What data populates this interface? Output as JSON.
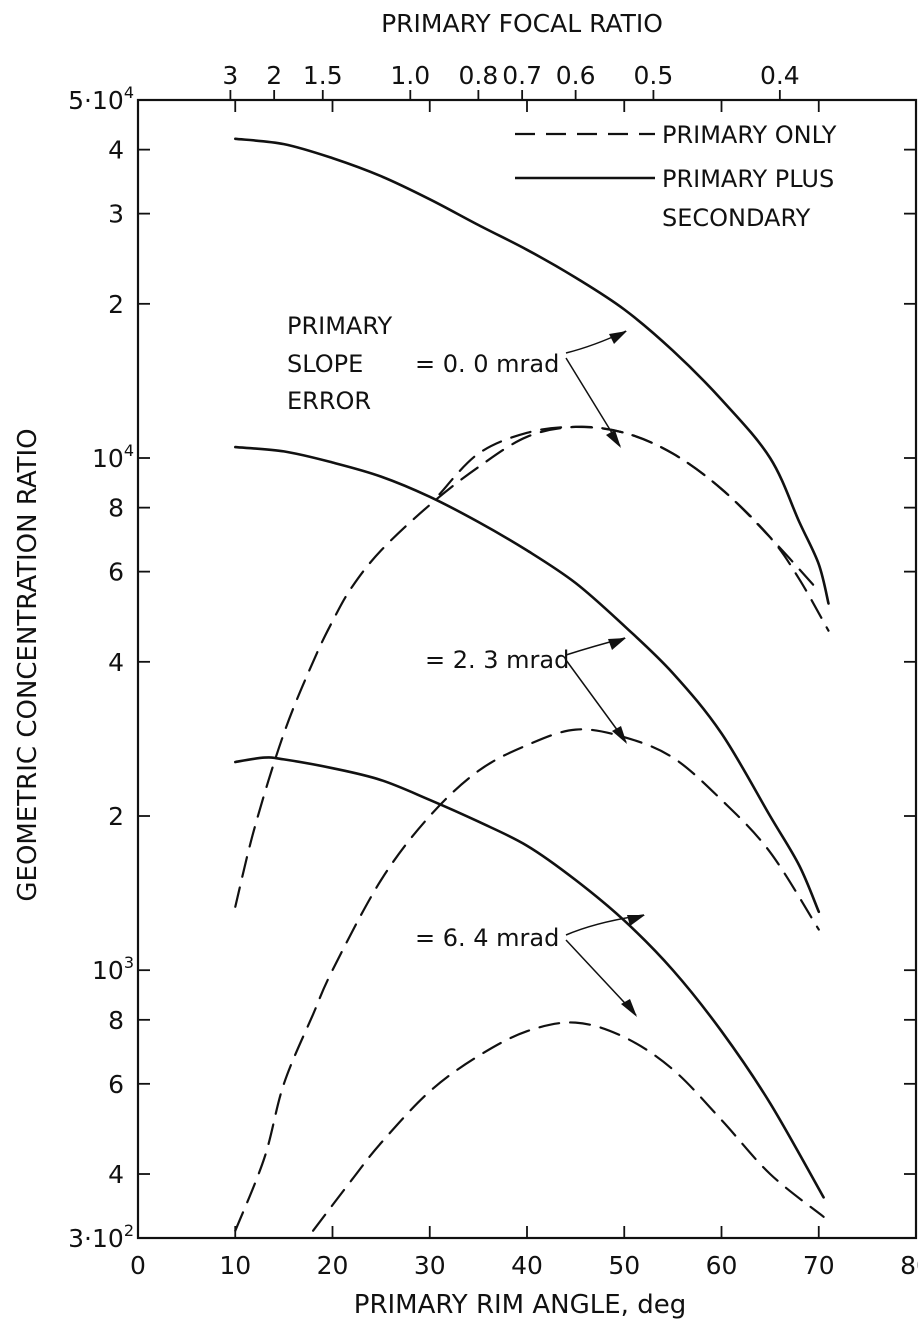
{
  "chart_data": {
    "type": "line",
    "title": "",
    "xlabel": "PRIMARY RIM ANGLE, deg",
    "ylabel": "GEOMETRIC CONCENTRATION RATIO",
    "top_axis_label": "PRIMARY FOCAL RATIO",
    "xlim": [
      0,
      80
    ],
    "ylim": [
      300,
      50000
    ],
    "y_scale": "log",
    "grid": false,
    "x_ticks": [
      0,
      10,
      20,
      30,
      40,
      50,
      60,
      70,
      80
    ],
    "x_tick_labels": [
      "0",
      "10",
      "20",
      "30",
      "40",
      "50",
      "60",
      "70",
      "80"
    ],
    "y_ticks": [
      {
        "value": 50000,
        "label": "5·10",
        "sup": "4"
      },
      {
        "value": 40000,
        "label": "4",
        "sup": ""
      },
      {
        "value": 30000,
        "label": "3",
        "sup": ""
      },
      {
        "value": 20000,
        "label": "2",
        "sup": ""
      },
      {
        "value": 10000,
        "label": "10",
        "sup": "4"
      },
      {
        "value": 8000,
        "label": "8",
        "sup": ""
      },
      {
        "value": 6000,
        "label": "6",
        "sup": ""
      },
      {
        "value": 4000,
        "label": "4",
        "sup": ""
      },
      {
        "value": 2000,
        "label": "2",
        "sup": ""
      },
      {
        "value": 1000,
        "label": "10",
        "sup": "3"
      },
      {
        "value": 800,
        "label": "8",
        "sup": ""
      },
      {
        "value": 600,
        "label": "6",
        "sup": ""
      },
      {
        "value": 400,
        "label": "4",
        "sup": ""
      },
      {
        "value": 300,
        "label": "3·10",
        "sup": "2"
      }
    ],
    "top_ticks": [
      {
        "angle": 9.5,
        "label": "3"
      },
      {
        "angle": 14,
        "label": "2"
      },
      {
        "angle": 19,
        "label": "1.5"
      },
      {
        "angle": 28,
        "label": "1.0"
      },
      {
        "angle": 35,
        "label": "0.8"
      },
      {
        "angle": 39.5,
        "label": "0.7"
      },
      {
        "angle": 45,
        "label": "0.6"
      },
      {
        "angle": 53,
        "label": "0.5"
      },
      {
        "angle": 66,
        "label": "0.4"
      }
    ],
    "legend": {
      "placement": "top-right",
      "entries": [
        {
          "label": "PRIMARY ONLY",
          "style": "dashed"
        },
        {
          "label": "PRIMARY PLUS",
          "label2": "SECONDARY",
          "style": "solid"
        }
      ]
    },
    "annotations": {
      "slope_error_title": [
        "PRIMARY",
        "SLOPE",
        "ERROR"
      ],
      "labels": [
        "= 0. 0 mrad",
        "= 2. 3 mrad",
        "= 6. 4 mrad"
      ]
    },
    "series": [
      {
        "group": "0.0 mrad",
        "style": "solid",
        "x": [
          10,
          15,
          20,
          25,
          30,
          35,
          40,
          45,
          50,
          55,
          60,
          65,
          68,
          70,
          71
        ],
        "y": [
          42000,
          41000,
          38500,
          35500,
          32000,
          28500,
          25500,
          22500,
          19500,
          16200,
          13000,
          10000,
          7500,
          6200,
          5200
        ]
      },
      {
        "group": "0.0 mrad",
        "style": "dashed",
        "x": [
          31,
          35,
          40,
          45,
          50,
          55,
          60,
          65,
          68,
          71
        ],
        "y": [
          8500,
          10200,
          11200,
          11500,
          11200,
          10200,
          8700,
          7000,
          5800,
          4600
        ]
      },
      {
        "group": "2.3 mrad",
        "style": "solid",
        "x": [
          10,
          15,
          20,
          25,
          30,
          35,
          40,
          45,
          50,
          55,
          60,
          65,
          68,
          70
        ],
        "y": [
          10500,
          10300,
          9800,
          9200,
          8400,
          7500,
          6600,
          5700,
          4700,
          3800,
          2900,
          2000,
          1600,
          1300
        ]
      },
      {
        "group": "2.3 mrad",
        "style": "dashed",
        "x": [
          10,
          12,
          15,
          18,
          20,
          22,
          25,
          30,
          35,
          40,
          45,
          50,
          55,
          60,
          65,
          70
        ],
        "y": [
          1330,
          1900,
          2900,
          4000,
          4800,
          5600,
          6600,
          8100,
          9600,
          11000,
          11500,
          11200,
          10200,
          8700,
          7000,
          5500
        ]
      },
      {
        "group": "6.4 mrad",
        "style": "solid",
        "x": [
          10,
          13,
          15,
          20,
          25,
          30,
          35,
          40,
          45,
          50,
          55,
          60,
          65,
          70.5
        ],
        "y": [
          2550,
          2600,
          2580,
          2480,
          2350,
          2150,
          1950,
          1750,
          1500,
          1250,
          1000,
          760,
          550,
          360
        ]
      },
      {
        "group": "6.4 mrad",
        "style": "dashed",
        "x": [
          10,
          13,
          15,
          18,
          20,
          25,
          30,
          35,
          40,
          45,
          50,
          55,
          60,
          65,
          70
        ],
        "y": [
          310,
          430,
          600,
          820,
          1000,
          1500,
          2000,
          2450,
          2750,
          2950,
          2850,
          2600,
          2150,
          1700,
          1200
        ]
      },
      {
        "group": "6.4 mrad",
        "style": "dashed",
        "x": [
          18,
          22,
          25,
          30,
          35,
          40,
          45,
          50,
          55,
          60,
          65,
          70.5
        ],
        "y": [
          310,
          390,
          460,
          580,
          680,
          760,
          790,
          740,
          640,
          510,
          400,
          330
        ]
      }
    ]
  }
}
